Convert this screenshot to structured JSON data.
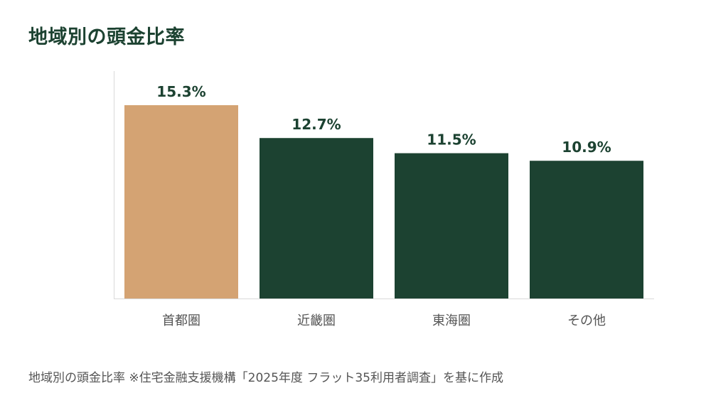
{
  "page": {
    "title": "地域別の頭金比率",
    "caption": "地域別の頭金比率 ※住宅金融支援機構「2025年度 フラット35利用者調査」を基に作成"
  },
  "chart_data": {
    "type": "bar",
    "title": "地域別の頭金比率",
    "xlabel": "",
    "ylabel": "",
    "categories": [
      "首都圏",
      "近畿圏",
      "東海圏",
      "その他"
    ],
    "values": [
      15.3,
      12.7,
      11.5,
      10.9
    ],
    "data_labels": [
      "15.3%",
      "12.7%",
      "11.5%",
      "10.9%"
    ],
    "unit": "%",
    "ylim": [
      0,
      18
    ],
    "grid": false,
    "legend": "none",
    "colors": {
      "highlight": "#d4a373",
      "default": "#1c4231",
      "label": "#1c4231",
      "tick": "#555555",
      "axis": "#d9d9d9"
    },
    "highlight_index": 0
  }
}
